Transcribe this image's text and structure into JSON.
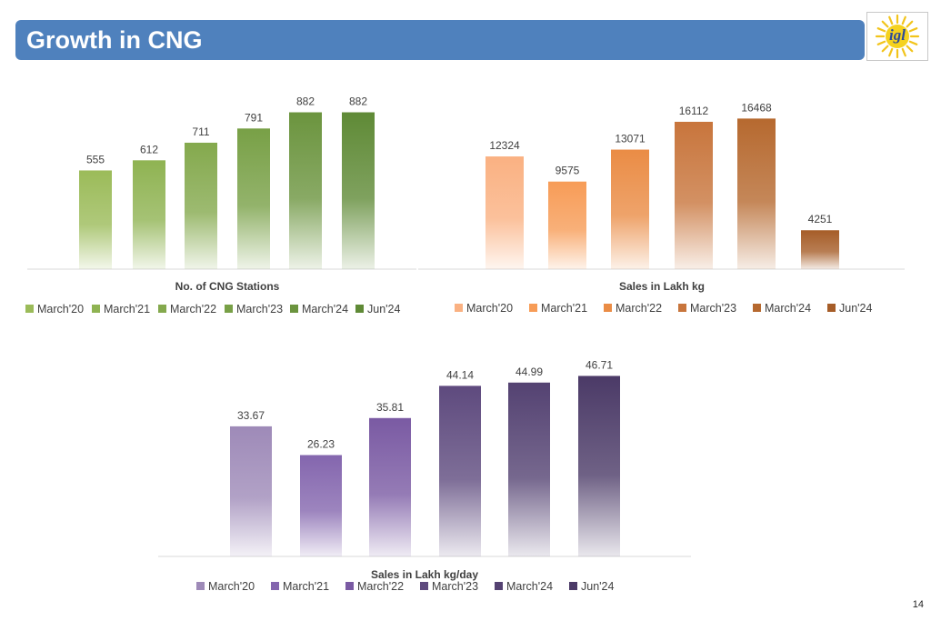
{
  "header": {
    "title": "Growth in CNG",
    "title_bar_color": "#4f81bd"
  },
  "logo": {
    "icon": "igl-sun-logo",
    "text": "igl"
  },
  "page_number": "14",
  "chart_data": [
    {
      "type": "bar",
      "title": "No. of CNG Stations",
      "categories": [
        "March'20",
        "March'21",
        "March'22",
        "March'23",
        "March'24",
        "Jun'24"
      ],
      "values": [
        555,
        612,
        711,
        791,
        882,
        882
      ],
      "value_labels": [
        "555",
        "612",
        "711",
        "791",
        "882",
        "882"
      ],
      "colors": [
        "#9bbb59",
        "#8fb352",
        "#84a94d",
        "#78a046",
        "#6b943e",
        "#5f8a36"
      ],
      "ylim": [
        0,
        900
      ],
      "grid": false,
      "legend_position": "bottom"
    },
    {
      "type": "bar",
      "title": "Sales in Lakh kg",
      "categories": [
        "March'20",
        "March'21",
        "March'22",
        "March'23",
        "March'24",
        "Jun'24"
      ],
      "values": [
        12324,
        9575,
        13071,
        16112,
        16468,
        4251
      ],
      "value_labels": [
        "12324",
        "9575",
        "13071",
        "16112",
        "16468",
        "4251"
      ],
      "colors": [
        "#fab182",
        "#f79c57",
        "#ea8c45",
        "#c8753c",
        "#b6692f",
        "#a65d28"
      ],
      "ylim": [
        0,
        17500
      ],
      "grid": false,
      "legend_position": "bottom"
    },
    {
      "type": "bar",
      "title": "Sales in Lakh kg/day",
      "categories": [
        "March'20",
        "March'21",
        "March'22",
        "March'23",
        "March'24",
        "Jun'24"
      ],
      "values": [
        33.67,
        26.23,
        35.81,
        44.14,
        44.99,
        46.71
      ],
      "value_labels": [
        "33.67",
        "26.23",
        "35.81",
        "44.14",
        "44.99",
        "46.71"
      ],
      "colors": [
        "#9e8ab8",
        "#8466ae",
        "#7a5aa3",
        "#5e4a7e",
        "#544272",
        "#4b3a67"
      ],
      "ylim": [
        0,
        48.7
      ],
      "grid": false,
      "legend_position": "bottom"
    }
  ]
}
